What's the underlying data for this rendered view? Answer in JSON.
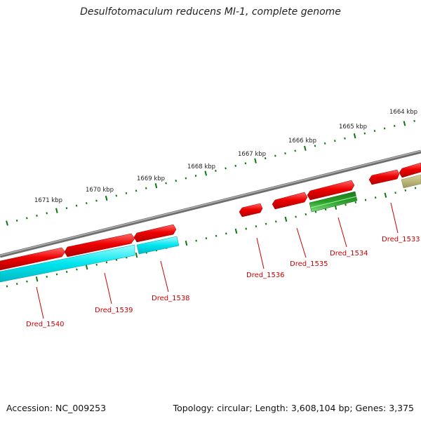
{
  "title": "Desulfotomaculum reducens MI-1, complete genome",
  "footer": {
    "accession": "Accession: NC_009253",
    "summary": "Topology: circular; Length: 3,608,104 bp; Genes: 3,375"
  },
  "colors": {
    "backbone": "#8a8a8a",
    "forward_gene": "#ee0000",
    "reverse_gene": "#00e5ee",
    "rna_gene": "#2aa02a",
    "other_gene": "#b5b06a",
    "tick": "#0a7a0a",
    "gene_label": "#cc0000"
  },
  "kbp_ticks": [
    "1664 kbp",
    "1665 kbp",
    "1666 kbp",
    "1667 kbp",
    "1668 kbp",
    "1669 kbp",
    "1670 kbp",
    "1671 kbp"
  ],
  "gene_labels": [
    "Dred_1533",
    "Dred_1534",
    "Dred_1535",
    "Dred_1536",
    "Dred_1538",
    "Dred_1539",
    "Dred_1540"
  ]
}
